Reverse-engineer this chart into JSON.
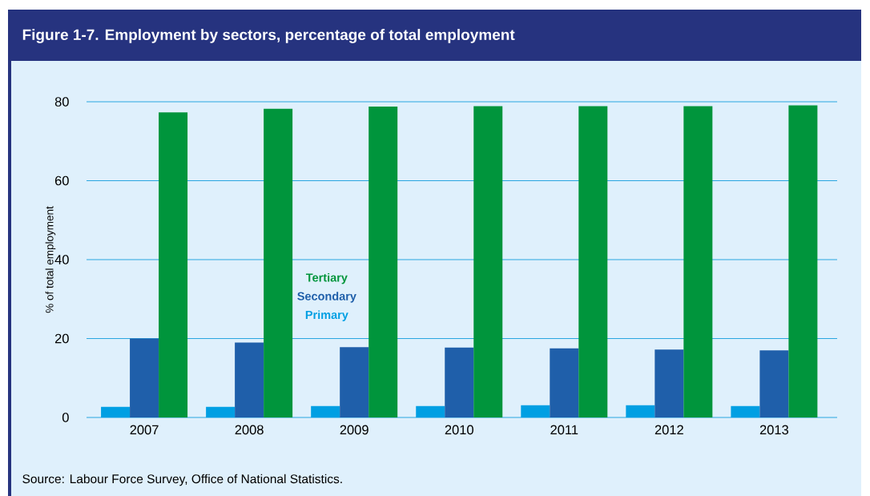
{
  "chart_data": {
    "type": "bar",
    "title": "Figure 1-7.  Employment by sectors, percentage of total employment",
    "ylabel": "% of total employment",
    "categories": [
      "2007",
      "2008",
      "2009",
      "2010",
      "2011",
      "2012",
      "2013"
    ],
    "series": [
      {
        "name": "Primary",
        "color": "#009fe3",
        "values": [
          2.7,
          2.7,
          2.9,
          2.9,
          3.1,
          3.1,
          2.9
        ]
      },
      {
        "name": "Secondary",
        "color": "#1f5faa",
        "values": [
          20.0,
          19.0,
          17.8,
          17.7,
          17.5,
          17.2,
          17.0
        ]
      },
      {
        "name": "Tertiary",
        "color": "#00953c",
        "values": [
          77.3,
          78.2,
          78.8,
          78.9,
          78.9,
          78.9,
          79.1
        ]
      }
    ],
    "ylim": [
      0,
      80
    ],
    "yticks": [
      0,
      20,
      40,
      60,
      80
    ],
    "grid": "y",
    "legend": "left",
    "annotations": [
      "Source: Labour Force Survey, Office of National Statistics."
    ]
  }
}
